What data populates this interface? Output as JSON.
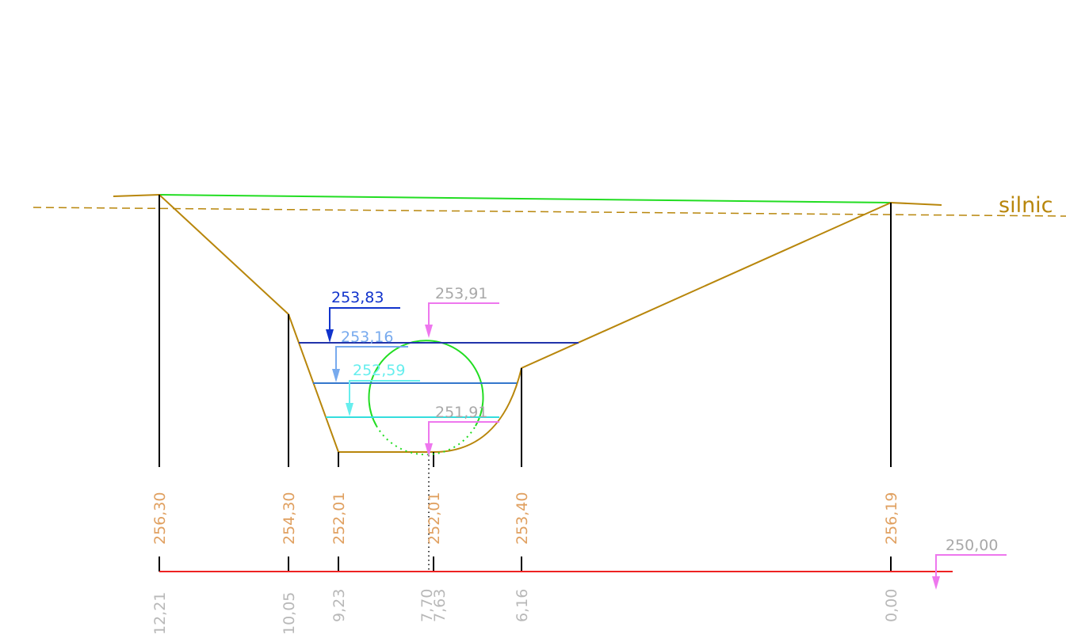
{
  "road_label": "silnic",
  "levels": [
    {
      "label": "253,83"
    },
    {
      "label": "253,16"
    },
    {
      "label": "252,59"
    },
    {
      "label": "253,91"
    },
    {
      "label": "251,91"
    },
    {
      "label": "250,00"
    }
  ],
  "elevations": [
    "256,30",
    "254,30",
    "252,01",
    "252,01",
    "253,40",
    "256,19"
  ],
  "distances": [
    "12,21",
    "10,05",
    "9,23",
    "7,70",
    "7,63",
    "6,16",
    "0,00"
  ]
}
